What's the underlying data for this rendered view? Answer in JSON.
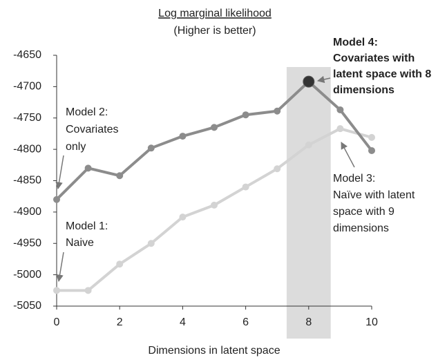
{
  "chart_data": {
    "type": "line",
    "title": "Log marginal likelihood",
    "subtitle": "(Higher is better)",
    "x_label": "Dimensions in latent space",
    "x": [
      0,
      1,
      2,
      3,
      4,
      5,
      6,
      7,
      8,
      9,
      10
    ],
    "series": [
      {
        "color": "#8c8c8c",
        "values": [
          -4880,
          -4830,
          -4842,
          -4798,
          -4779,
          -4765,
          -4745,
          -4739,
          -4692,
          -4737,
          -4802
        ]
      },
      {
        "color": "#d3d3d3",
        "values": [
          -5025,
          -5025,
          -4983,
          -4950,
          -4908,
          -4889,
          -4860,
          -4831,
          -4793,
          -4767,
          -4781
        ]
      }
    ],
    "xlim": [
      0,
      10
    ],
    "xticks": [
      0,
      2,
      4,
      6,
      8,
      10
    ],
    "ylim": [
      -5050,
      -4650
    ],
    "yticks": [
      -5050,
      -5000,
      -4950,
      -4900,
      -4850,
      -4800,
      -4750,
      -4700,
      -4650
    ],
    "highlight_x": [
      7.3,
      8.7
    ],
    "highlight_color": "#dcdcdc",
    "best_point_color": "#333333",
    "annotations": [
      {
        "lines": [
          "Model 4:",
          "Covariates with",
          "latent space with 8",
          "dimensions"
        ]
      },
      {
        "lines": [
          "Model 2:",
          "Covariates",
          "only"
        ]
      },
      {
        "lines": [
          "Model 1:",
          "Naive"
        ]
      },
      {
        "lines": [
          "Model 3:",
          "Naïve with latent",
          "space with 9",
          "dimensions"
        ]
      }
    ]
  }
}
